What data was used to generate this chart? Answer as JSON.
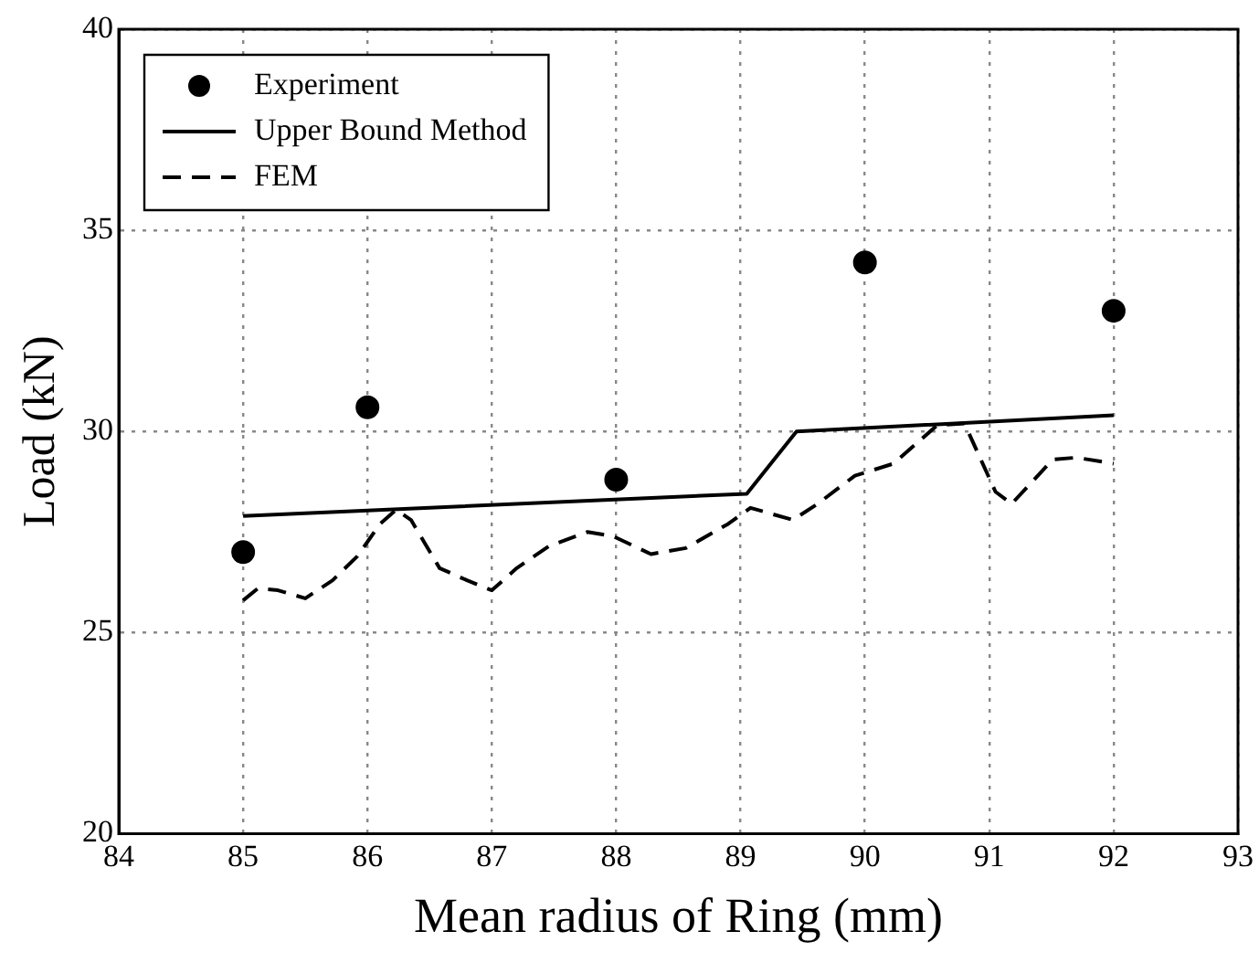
{
  "chart_data": {
    "type": "line",
    "xlabel": "Mean radius of Ring (mm)",
    "ylabel": "Load (kN)",
    "xlim": [
      84,
      93
    ],
    "xticks": [
      84,
      85,
      86,
      87,
      88,
      89,
      90,
      91,
      92,
      93
    ],
    "ylim": [
      20,
      40
    ],
    "yticks": [
      20,
      25,
      30,
      35,
      40
    ],
    "grid": true,
    "legend": "top left",
    "series": [
      {
        "name": "Experiment",
        "type": "scatter",
        "marker": "circle",
        "color": "#000000",
        "x": [
          85,
          86,
          88,
          90,
          92
        ],
        "values": [
          27.0,
          30.6,
          28.8,
          34.2,
          33.0
        ]
      },
      {
        "name": "Upper Bound Method",
        "marker": "none",
        "line_style": "solid",
        "color": "#000000",
        "x": [
          85,
          89.05,
          89.45,
          92
        ],
        "values": [
          27.9,
          28.45,
          30.0,
          30.4
        ]
      },
      {
        "name": "FEM",
        "marker": "none",
        "line_style": "dashed",
        "color": "#000000",
        "x": [
          85,
          85.12,
          85.28,
          85.5,
          85.72,
          85.92,
          86.1,
          86.23,
          86.35,
          86.58,
          86.8,
          87.0,
          87.2,
          87.46,
          87.77,
          87.97,
          88.28,
          88.56,
          88.9,
          89.08,
          89.42,
          89.62,
          89.92,
          90.23,
          90.58,
          90.8,
          91.05,
          91.18,
          91.51,
          91.7,
          92.0
        ],
        "values": [
          25.8,
          26.1,
          26.05,
          25.85,
          26.3,
          26.9,
          27.7,
          28.05,
          27.8,
          26.6,
          26.3,
          26.05,
          26.6,
          27.15,
          27.5,
          27.4,
          26.95,
          27.1,
          27.7,
          28.1,
          27.8,
          28.2,
          28.9,
          29.2,
          30.15,
          30.2,
          28.5,
          28.2,
          29.3,
          29.35,
          29.2
        ]
      }
    ]
  }
}
